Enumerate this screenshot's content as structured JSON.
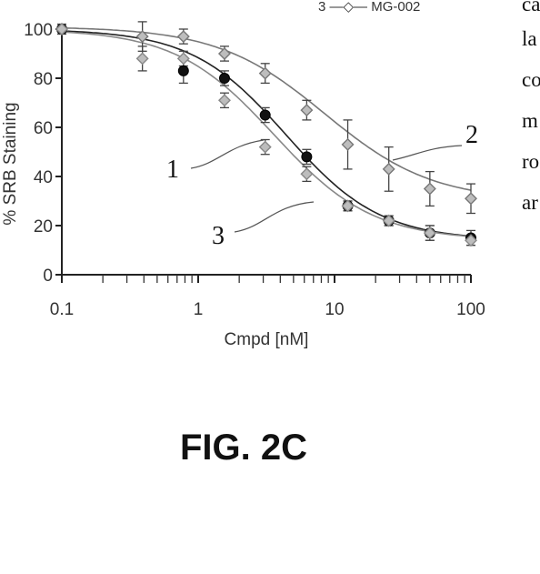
{
  "chart_data": {
    "type": "scatter",
    "title": "",
    "xlabel": "Cmpd [nM]",
    "ylabel": "% SRB Staining",
    "x_scale": "log",
    "xlim": [
      0.1,
      100
    ],
    "ylim": [
      0,
      100
    ],
    "x_ticks": [
      0.1,
      1,
      10,
      100
    ],
    "x_tick_labels": [
      "0.1",
      "1",
      "10",
      "100"
    ],
    "y_ticks": [
      0,
      20,
      40,
      60,
      80,
      100
    ],
    "y_tick_labels": [
      "0",
      "20",
      "40",
      "60",
      "80",
      "100"
    ],
    "grid": false,
    "legend_fragment": "3 —◇— MG-002",
    "series": [
      {
        "label": "1",
        "marker": "filled-circle",
        "color": "#111111",
        "points": [
          {
            "x": 0.1,
            "y": 100,
            "err": 2
          },
          {
            "x": 0.78,
            "y": 83,
            "err": 5
          },
          {
            "x": 1.56,
            "y": 80,
            "err": 3
          },
          {
            "x": 3.1,
            "y": 65,
            "err": 3
          },
          {
            "x": 6.25,
            "y": 48,
            "err": 3
          },
          {
            "x": 12.5,
            "y": 28,
            "err": 2
          },
          {
            "x": 25,
            "y": 22,
            "err": 2
          },
          {
            "x": 50,
            "y": 17,
            "err": 3
          },
          {
            "x": 100,
            "y": 15,
            "err": 3
          }
        ],
        "curve": {
          "top": 100,
          "bottom": 14,
          "ec50": 4.4,
          "hill": 1.25
        }
      },
      {
        "label": "2",
        "marker": "open-diamond",
        "color": "#777777",
        "points": [
          {
            "x": 0.1,
            "y": 100,
            "err": 2
          },
          {
            "x": 0.39,
            "y": 97,
            "err": 6
          },
          {
            "x": 0.78,
            "y": 97,
            "err": 3
          },
          {
            "x": 1.56,
            "y": 90,
            "err": 3
          },
          {
            "x": 3.1,
            "y": 82,
            "err": 4
          },
          {
            "x": 6.25,
            "y": 67,
            "err": 4
          },
          {
            "x": 12.5,
            "y": 53,
            "err": 10
          },
          {
            "x": 25,
            "y": 43,
            "err": 9
          },
          {
            "x": 50,
            "y": 35,
            "err": 7
          },
          {
            "x": 100,
            "y": 31,
            "err": 6
          }
        ],
        "curve": {
          "top": 101,
          "bottom": 30,
          "ec50": 8.5,
          "hill": 1.1
        }
      },
      {
        "label": "3",
        "marker": "open-diamond",
        "color": "#888888",
        "points": [
          {
            "x": 0.1,
            "y": 100,
            "err": 2
          },
          {
            "x": 0.39,
            "y": 88,
            "err": 5
          },
          {
            "x": 0.78,
            "y": 88,
            "err": 3
          },
          {
            "x": 1.56,
            "y": 71,
            "err": 3
          },
          {
            "x": 3.1,
            "y": 52,
            "err": 3
          },
          {
            "x": 6.25,
            "y": 41,
            "err": 3
          },
          {
            "x": 12.5,
            "y": 28,
            "err": 2
          },
          {
            "x": 25,
            "y": 22,
            "err": 2
          },
          {
            "x": 50,
            "y": 17,
            "err": 3
          },
          {
            "x": 100,
            "y": 14,
            "err": 2
          }
        ],
        "curve": {
          "top": 100,
          "bottom": 14,
          "ec50": 3.6,
          "hill": 1.2
        }
      }
    ]
  },
  "side_text": [
    "ca",
    "la",
    "co",
    "m",
    "ro",
    "ar"
  ],
  "caption": "FIG. 2C"
}
